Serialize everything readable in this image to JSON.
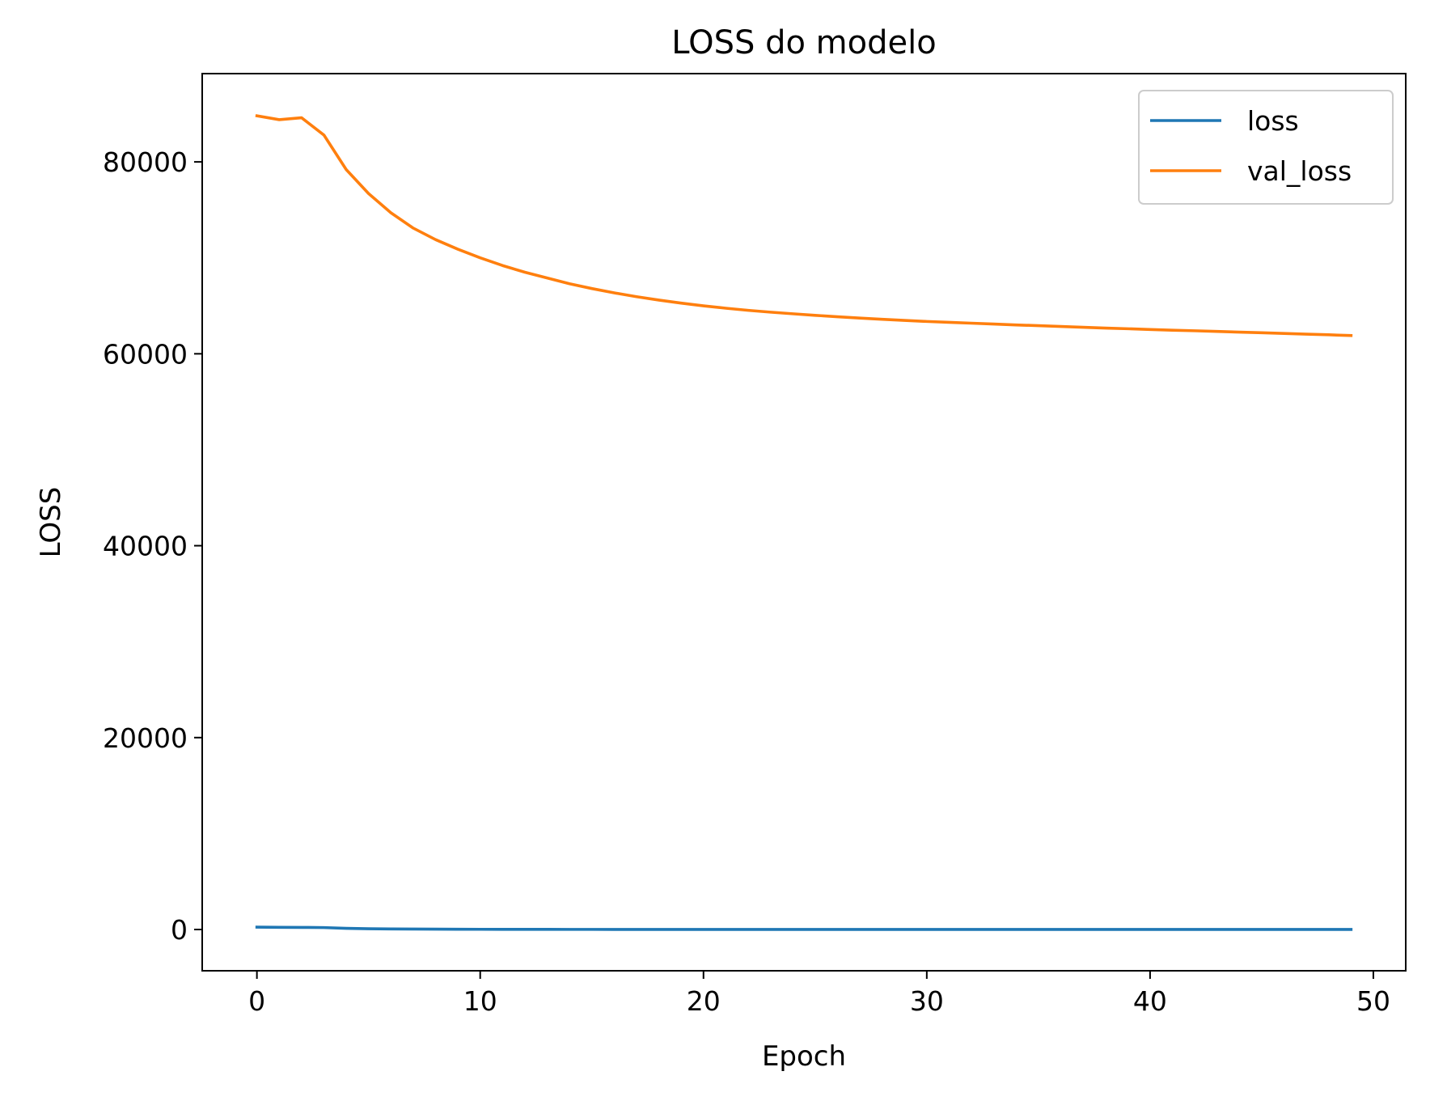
{
  "chart_data": {
    "type": "line",
    "title": "LOSS do modelo",
    "xlabel": "Epoch",
    "ylabel": "LOSS",
    "xlim": [
      -2.45,
      51.45
    ],
    "ylim": [
      -4300,
      89200
    ],
    "xticks": [
      0,
      10,
      20,
      30,
      40,
      50
    ],
    "yticks": [
      0,
      20000,
      40000,
      60000,
      80000
    ],
    "grid": false,
    "legend_position": "upper right",
    "x": [
      0,
      1,
      2,
      3,
      4,
      5,
      6,
      7,
      8,
      9,
      10,
      11,
      12,
      13,
      14,
      15,
      16,
      17,
      18,
      19,
      20,
      21,
      22,
      23,
      24,
      25,
      26,
      27,
      28,
      29,
      30,
      31,
      32,
      33,
      34,
      35,
      36,
      37,
      38,
      39,
      40,
      41,
      42,
      43,
      44,
      45,
      46,
      47,
      48,
      49
    ],
    "series": [
      {
        "name": "loss",
        "color": "#1f77b4",
        "values": [
          250,
          230,
          220,
          200,
          120,
          80,
          60,
          45,
          35,
          28,
          22,
          18,
          15,
          13,
          11,
          10,
          9,
          8,
          7,
          7,
          6,
          6,
          5,
          5,
          5,
          5,
          4,
          4,
          4,
          4,
          4,
          3,
          3,
          3,
          3,
          3,
          3,
          3,
          3,
          3,
          2,
          2,
          2,
          2,
          2,
          2,
          2,
          2,
          2,
          2
        ]
      },
      {
        "name": "val_loss",
        "color": "#ff7f0e",
        "values": [
          84800,
          84400,
          84600,
          82800,
          79200,
          76700,
          74700,
          73100,
          71900,
          70900,
          70000,
          69200,
          68500,
          67900,
          67300,
          66800,
          66350,
          65950,
          65600,
          65280,
          65000,
          64750,
          64530,
          64340,
          64170,
          64010,
          63860,
          63720,
          63600,
          63480,
          63370,
          63280,
          63190,
          63100,
          63010,
          62930,
          62850,
          62760,
          62680,
          62610,
          62530,
          62460,
          62400,
          62330,
          62260,
          62190,
          62120,
          62050,
          61980,
          61900
        ]
      }
    ]
  }
}
